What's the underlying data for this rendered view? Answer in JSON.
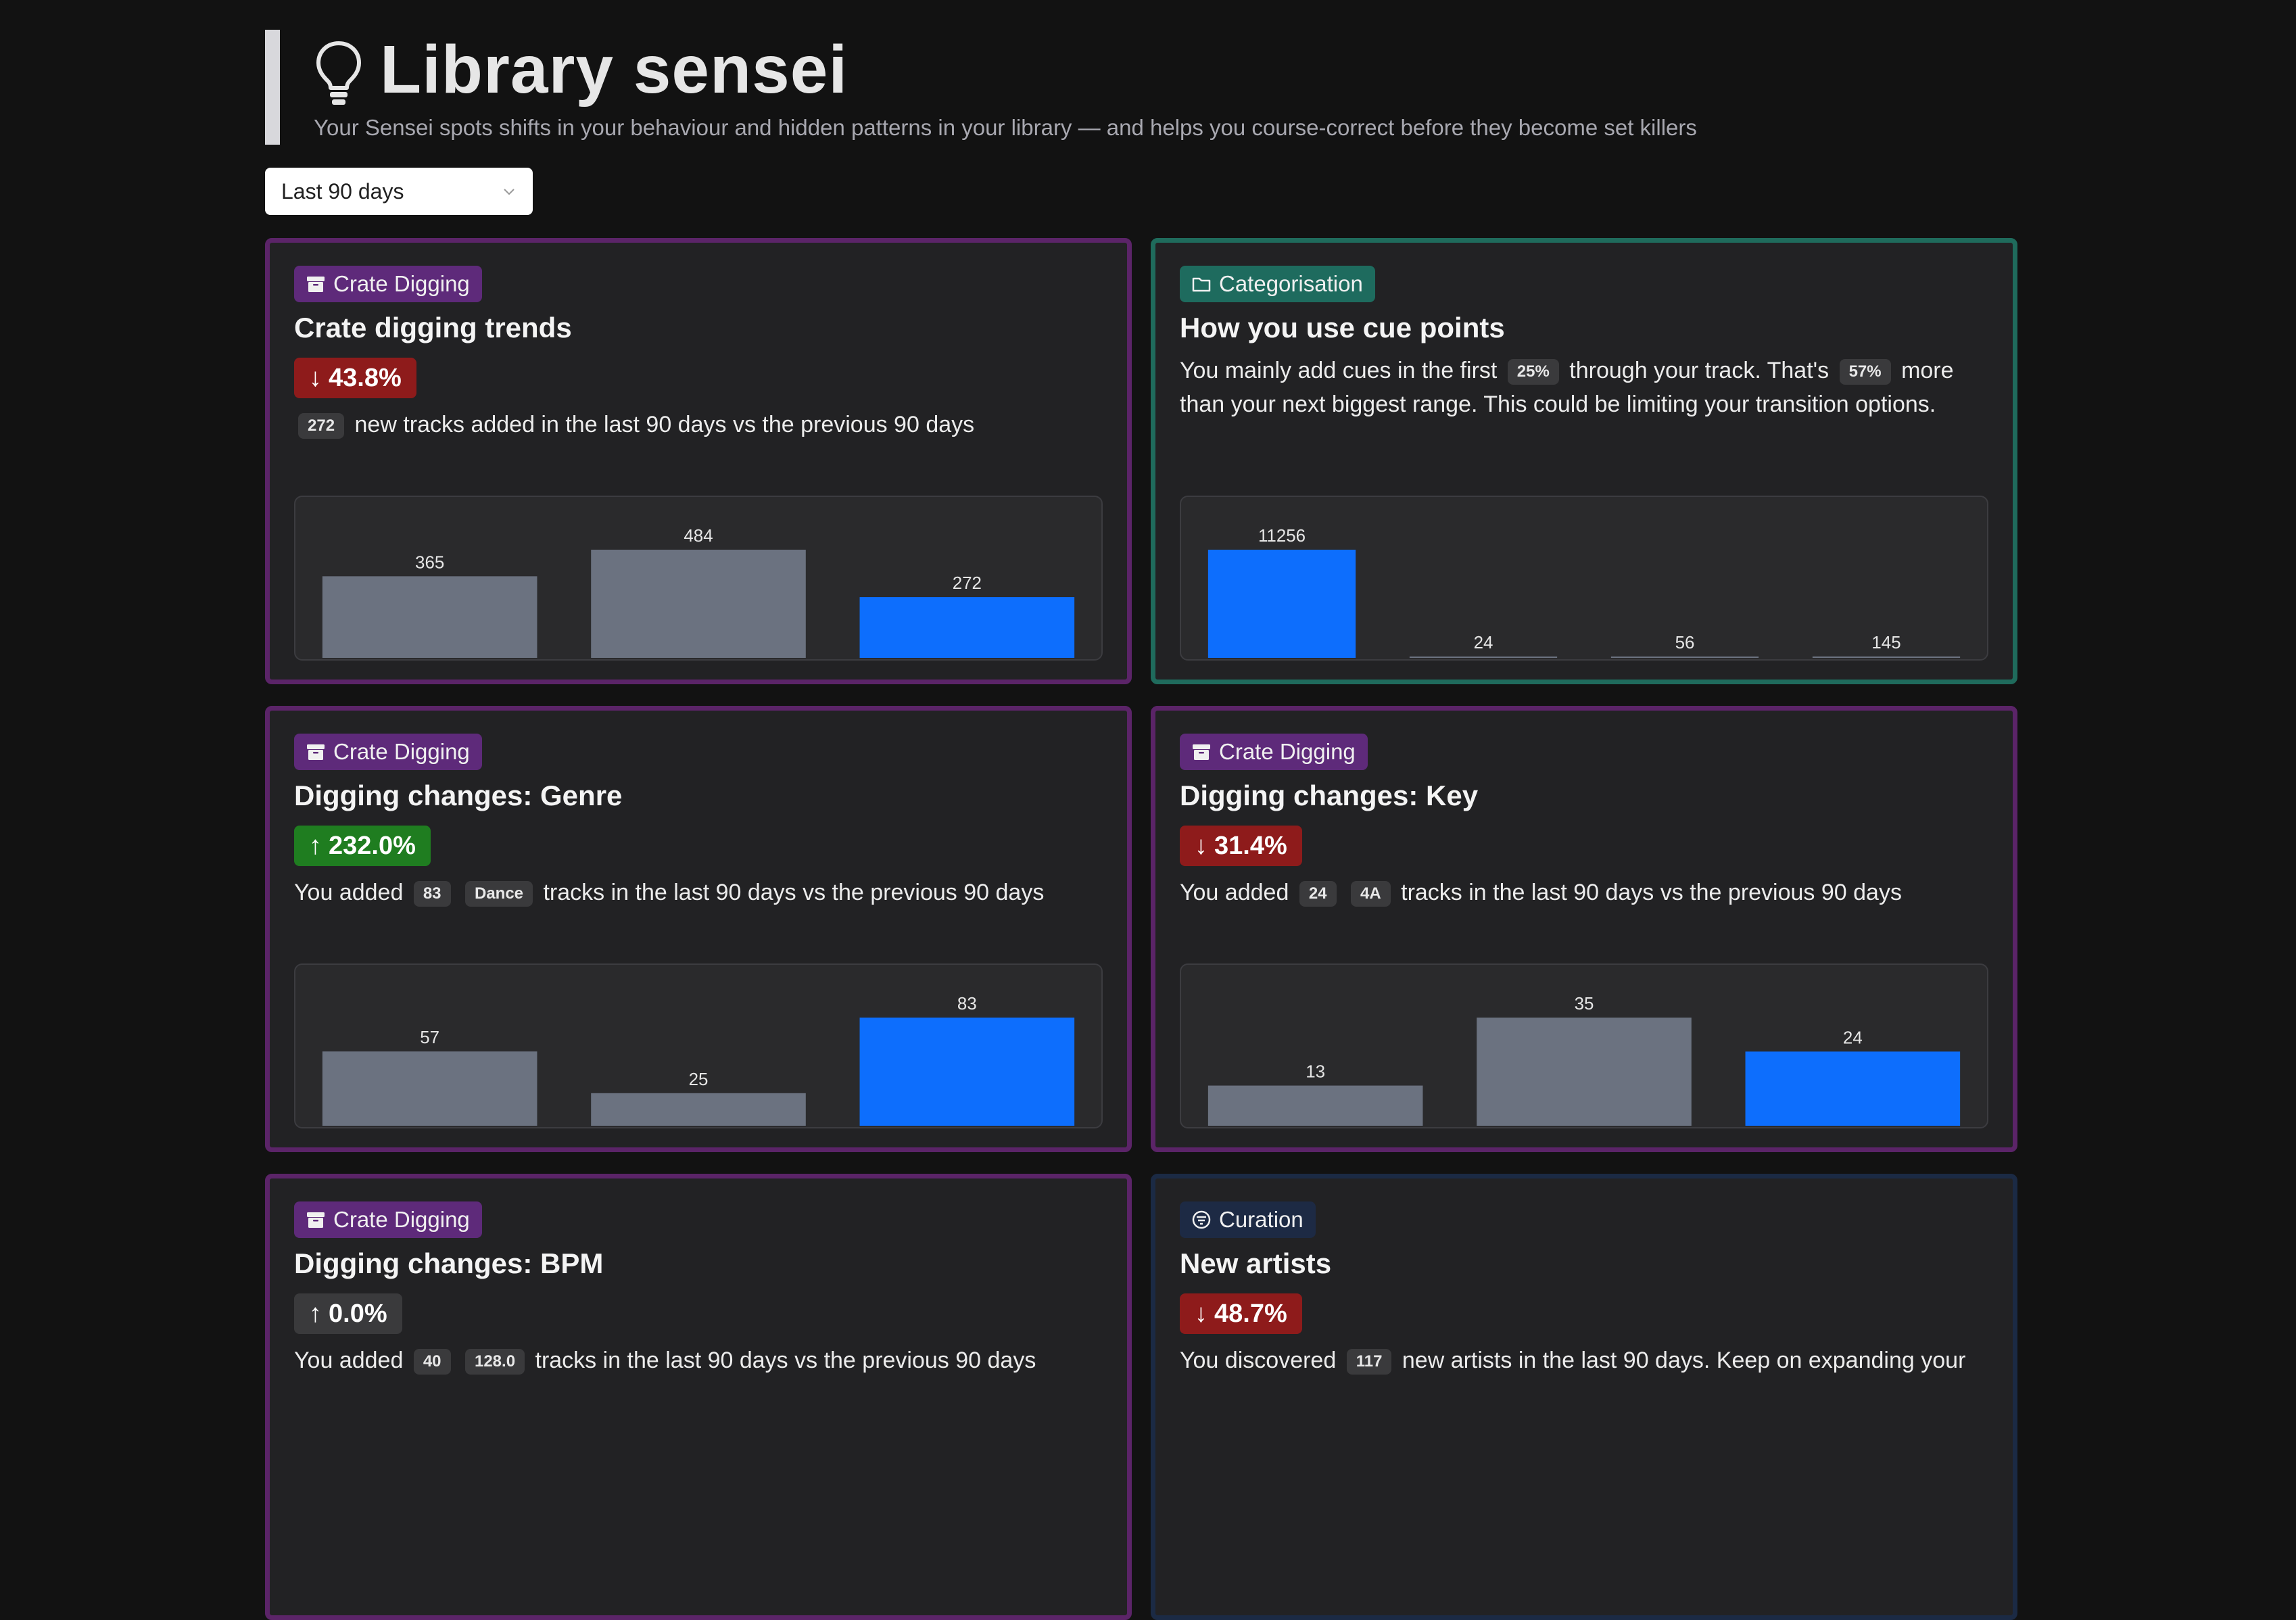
{
  "header": {
    "title": "Library sensei",
    "subtitle": "Your Sensei spots shifts in your behaviour and hidden patterns in your library — and helps you course-correct before they become set killers",
    "icon": "lightbulb-icon"
  },
  "range_select": {
    "value": "Last 90 days"
  },
  "colors": {
    "gray_bar": "#6b7280",
    "blue_bar": "#0d6efd",
    "down": "#8e1b1b",
    "up": "#1f7d20"
  },
  "cards": [
    {
      "tag": "Crate Digging",
      "title": "Crate digging trends",
      "delta": "43.8%",
      "direction": "down",
      "desc": {
        "pill1": "272",
        "text1": "new tracks added in the last 90 days vs the previous 90 days"
      },
      "chart_data": {
        "type": "bar",
        "values": [
          365,
          484,
          272
        ],
        "highlight_last": true
      }
    },
    {
      "tag": "Categorisation",
      "title": "How you use cue points",
      "desc": {
        "text1": "You mainly add cues in the first",
        "pill1": "25%",
        "text2": "through your track. That's",
        "pill2": "57%",
        "text3": "more than your next biggest range. This could be limiting your transition options."
      },
      "chart_data": {
        "type": "bar",
        "values": [
          11256,
          24,
          56,
          145
        ],
        "highlight_first": true
      }
    },
    {
      "tag": "Crate Digging",
      "title": "Digging changes: Genre",
      "delta": "232.0%",
      "direction": "up",
      "desc": {
        "text1": "You added",
        "pill1": "83",
        "pill2": "Dance",
        "text2": "tracks in the last 90 days vs the previous 90 days"
      },
      "chart_data": {
        "type": "bar",
        "values": [
          57,
          25,
          83
        ],
        "highlight_last": true
      }
    },
    {
      "tag": "Crate Digging",
      "title": "Digging changes: Key",
      "delta": "31.4%",
      "direction": "down",
      "desc": {
        "text1": "You added",
        "pill1": "24",
        "pill2": "4A",
        "text2": "tracks in the last 90 days vs the previous 90 days"
      },
      "chart_data": {
        "type": "bar",
        "values": [
          13,
          35,
          24
        ],
        "highlight_last": true
      }
    },
    {
      "tag": "Crate Digging",
      "title": "Digging changes: BPM",
      "delta": "0.0%",
      "direction": "flat",
      "desc": {
        "text1": "You added",
        "pill1": "40",
        "pill2": "128.0",
        "text2": "tracks in the last 90 days vs the previous 90 days"
      }
    },
    {
      "tag": "Curation",
      "title": "New artists",
      "delta": "48.7%",
      "direction": "down",
      "desc": {
        "text1": "You discovered",
        "pill1": "117",
        "text2": "new artists in the last 90 days. Keep on expanding your"
      }
    }
  ]
}
